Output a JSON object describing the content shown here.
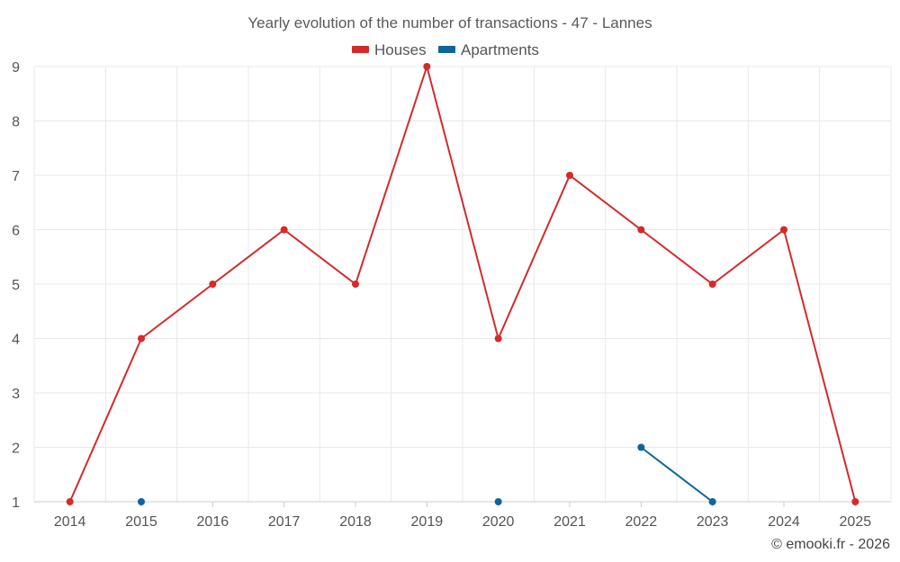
{
  "chart_data": {
    "type": "line",
    "title": "Yearly evolution of the number of transactions - 47 - Lannes",
    "categories": [
      "2014",
      "2015",
      "2016",
      "2017",
      "2018",
      "2019",
      "2020",
      "2021",
      "2022",
      "2023",
      "2024",
      "2025"
    ],
    "series": [
      {
        "name": "Houses",
        "color": "#d42a2a",
        "values": [
          1,
          4,
          5,
          6,
          5,
          9,
          4,
          7,
          6,
          5,
          6,
          1
        ]
      },
      {
        "name": "Apartments",
        "color": "#0d6699",
        "values": [
          null,
          1,
          null,
          null,
          null,
          null,
          1,
          null,
          2,
          1,
          null,
          null
        ]
      }
    ],
    "yticks": [
      1,
      2,
      3,
      4,
      5,
      6,
      7,
      8,
      9
    ],
    "ylim": [
      1,
      9
    ],
    "xlabel": "",
    "ylabel": "",
    "grid": true,
    "legend_position": "top-center"
  },
  "credit": "© emooki.fr - 2026"
}
